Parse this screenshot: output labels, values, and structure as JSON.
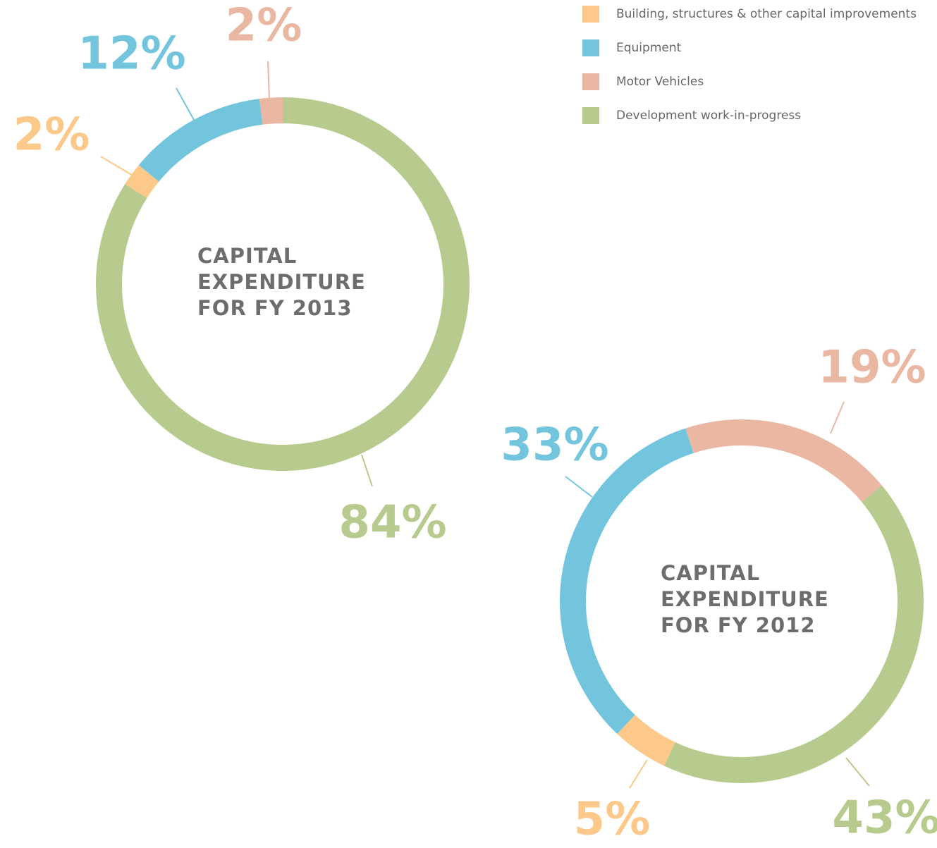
{
  "legend": {
    "categories": [
      "Building, structures & other capital improvements",
      "Equipment",
      "Motor Vehicles",
      "Development work-in-progress"
    ],
    "colors": [
      "#fdc98a",
      "#72c5dd",
      "#eab8a2",
      "#b8cb8e"
    ]
  },
  "chart_data": [
    {
      "type": "donut",
      "title": "CAPITAL EXPENDITURE FOR FY 2013",
      "values": [
        2,
        12,
        2,
        84
      ],
      "value_labels": [
        "2%",
        "12%",
        "2%",
        "84%"
      ]
    },
    {
      "type": "donut",
      "title": "CAPITAL EXPENDITURE FOR FY 2012",
      "values": [
        5,
        33,
        19,
        43
      ],
      "value_labels": [
        "5%",
        "33%",
        "19%",
        "43%"
      ]
    }
  ]
}
